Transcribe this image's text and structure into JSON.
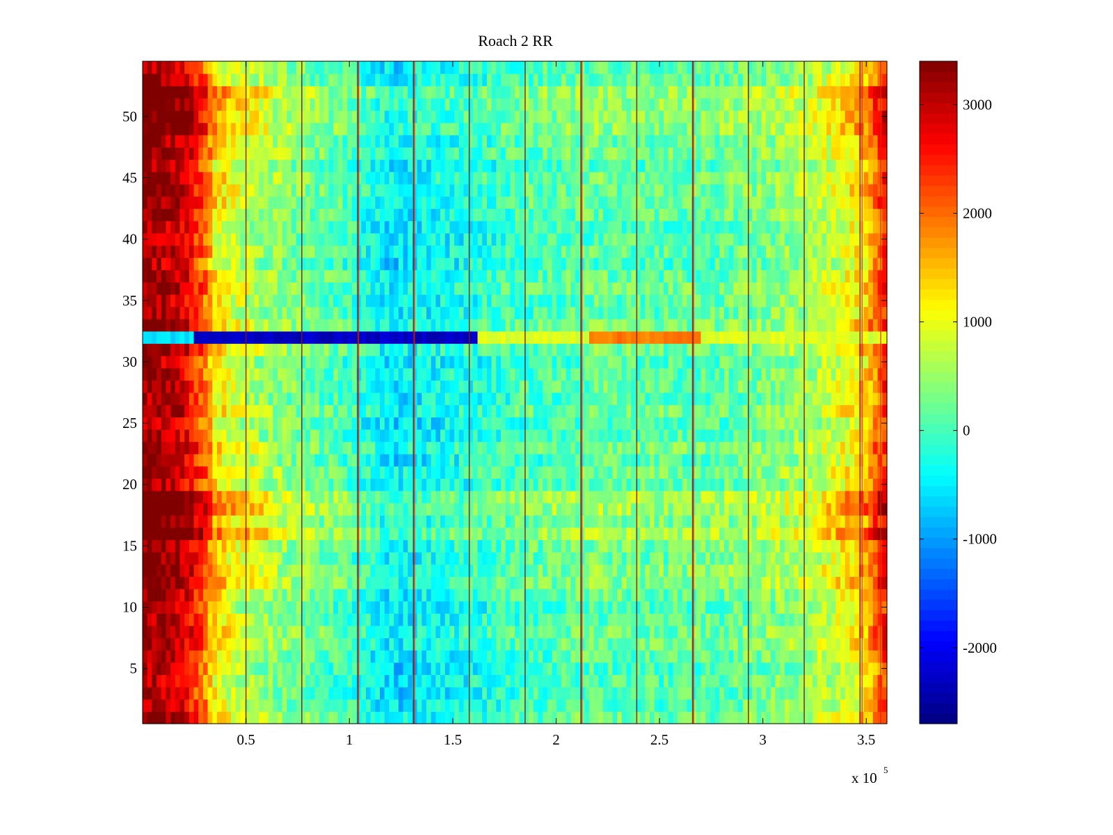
{
  "chart_data": {
    "type": "heatmap",
    "title": "Roach 2 RR",
    "xlabel": "",
    "ylabel": "",
    "x_exponent_label": {
      "base": "x 10",
      "exp": "5"
    },
    "xlim": [
      0,
      3.6
    ],
    "ylim": [
      0.5,
      54.5
    ],
    "x_ticks": [
      0.5,
      1,
      1.5,
      2,
      2.5,
      3,
      3.5
    ],
    "x_tick_labels": [
      "0.5",
      "1",
      "1.5",
      "2",
      "2.5",
      "3",
      "3.5"
    ],
    "y_ticks": [
      5,
      10,
      15,
      20,
      25,
      30,
      35,
      40,
      45,
      50
    ],
    "y_tick_labels": [
      "5",
      "10",
      "15",
      "20",
      "25",
      "30",
      "35",
      "40",
      "45",
      "50"
    ],
    "colormap": "jet",
    "clim": [
      -2700,
      3400
    ],
    "colorbar": {
      "ticks": [
        3000,
        2000,
        1000,
        0,
        -1000,
        -2000
      ],
      "tick_labels": [
        "3000",
        "2000",
        "1000",
        "0",
        "-1000",
        "-2000"
      ]
    },
    "rows": 54,
    "x_range_units": "x 10^5",
    "baseline_profile": {
      "x": [
        0,
        0.1,
        0.2,
        0.3,
        0.35,
        0.45,
        0.6,
        0.8,
        1.0,
        1.2,
        1.4,
        1.6,
        1.8,
        2.0,
        2.2,
        2.5,
        2.8,
        3.0,
        3.2,
        3.35,
        3.5,
        3.6
      ],
      "value": [
        3300,
        3200,
        2900,
        2100,
        1300,
        900,
        550,
        250,
        0,
        -500,
        -350,
        -200,
        0,
        100,
        200,
        150,
        200,
        350,
        550,
        900,
        1400,
        2600
      ]
    },
    "vertical_stripes": {
      "dark": [
        0.5,
        0.77,
        1.04,
        1.31,
        1.58,
        1.85,
        2.12,
        2.39,
        2.66,
        2.93,
        3.2,
        3.47
      ],
      "red": [
        1.045,
        1.315,
        2.125,
        2.665,
        3.48,
        3.57
      ]
    },
    "anomaly_row": {
      "row": 32,
      "segments": [
        {
          "from": 0.0,
          "to": 0.25,
          "value": -600
        },
        {
          "from": 0.25,
          "to": 1.62,
          "value": -2300
        },
        {
          "from": 1.62,
          "to": 2.15,
          "value": 900
        },
        {
          "from": 2.15,
          "to": 2.7,
          "value": 1900
        },
        {
          "from": 2.7,
          "to": 3.6,
          "value": 900
        }
      ]
    },
    "hot_rows": [
      11,
      12,
      13,
      16,
      17,
      18,
      19,
      49,
      50,
      51,
      52
    ],
    "cool_rows": [
      3,
      4,
      5,
      6,
      10,
      11
    ]
  }
}
